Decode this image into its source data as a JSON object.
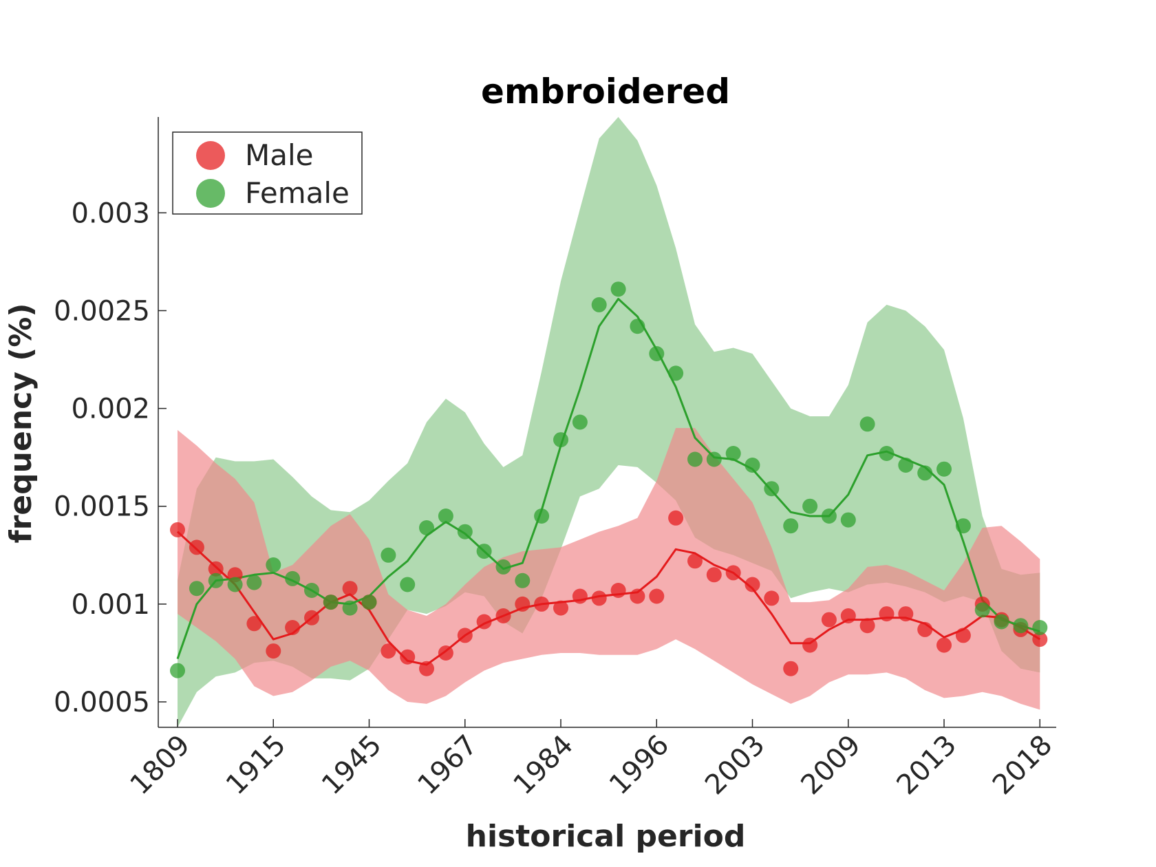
{
  "chart_data": {
    "type": "line",
    "title": "embroidered",
    "xlabel": "historical period",
    "ylabel": "frequency (%)",
    "x_tick_labels": [
      "1809",
      "1915",
      "1945",
      "1967",
      "1984",
      "1996",
      "2003",
      "2009",
      "2013",
      "2018"
    ],
    "y_ticks": [
      0.0005,
      0.001,
      0.0015,
      0.002,
      0.0025,
      0.003
    ],
    "y_tick_labels": [
      "0.0005",
      "0.001",
      "0.0015",
      "0.002",
      "0.0025",
      "0.003"
    ],
    "ylim": [
      0.00037,
      0.00349
    ],
    "grid": false,
    "legend_position": "top-left",
    "series": [
      {
        "name": "Male",
        "color": "#e41a1c",
        "band_color": "#f0888a",
        "points": [
          0.00138,
          0.00129,
          0.00118,
          0.00115,
          0.0009,
          0.00076,
          0.00088,
          0.00093,
          0.00101,
          0.00108,
          0.00101,
          0.00076,
          0.00073,
          0.00067,
          0.00075,
          0.00084,
          0.00091,
          0.00094,
          0.001,
          0.001,
          0.00098,
          0.00104,
          0.00103,
          0.00107,
          0.00104,
          0.00104,
          0.00144,
          0.00122,
          0.00115,
          0.00116,
          0.0011,
          0.00103,
          0.00067,
          0.00079,
          0.00092,
          0.00094,
          0.00089,
          0.00095,
          0.00095,
          0.00087,
          0.00079,
          0.00084,
          0.001,
          0.00092,
          0.00087,
          0.00082
        ],
        "trend": [
          0.00137,
          0.00128,
          0.00119,
          0.0011,
          0.00096,
          0.00082,
          0.00085,
          0.00093,
          0.00101,
          0.00105,
          0.00097,
          0.00081,
          0.00071,
          0.00069,
          0.00076,
          0.00084,
          0.0009,
          0.00094,
          0.00098,
          0.001,
          0.00101,
          0.00102,
          0.00104,
          0.00105,
          0.00106,
          0.00114,
          0.00128,
          0.00126,
          0.0012,
          0.00116,
          0.00108,
          0.00095,
          0.0008,
          0.0008,
          0.00087,
          0.00092,
          0.00092,
          0.00093,
          0.00093,
          0.0009,
          0.00083,
          0.00087,
          0.00094,
          0.00093,
          0.00088,
          0.00082
        ],
        "band_upper": [
          0.00189,
          0.00181,
          0.00172,
          0.00164,
          0.00152,
          0.00116,
          0.0012,
          0.0013,
          0.0014,
          0.00146,
          0.00133,
          0.00105,
          0.00097,
          0.00094,
          0.001,
          0.0011,
          0.00119,
          0.00124,
          0.00127,
          0.00128,
          0.00129,
          0.00133,
          0.00137,
          0.0014,
          0.00144,
          0.00163,
          0.0019,
          0.0019,
          0.00176,
          0.00164,
          0.00152,
          0.00129,
          0.00101,
          0.00101,
          0.00102,
          0.00108,
          0.00119,
          0.0012,
          0.00117,
          0.00112,
          0.00107,
          0.00121,
          0.00139,
          0.0014,
          0.00132,
          0.00123
        ],
        "band_lower": [
          0.00095,
          0.00088,
          0.00081,
          0.00072,
          0.00058,
          0.00053,
          0.00055,
          0.00061,
          0.00068,
          0.00071,
          0.00066,
          0.00056,
          0.0005,
          0.00049,
          0.00053,
          0.0006,
          0.00066,
          0.0007,
          0.00072,
          0.00074,
          0.00075,
          0.00075,
          0.00074,
          0.00074,
          0.00074,
          0.00077,
          0.00082,
          0.00077,
          0.00071,
          0.00065,
          0.00059,
          0.00054,
          0.00049,
          0.00053,
          0.0006,
          0.00064,
          0.00064,
          0.00065,
          0.00062,
          0.00056,
          0.00052,
          0.00053,
          0.00055,
          0.00053,
          0.00049,
          0.00046
        ]
      },
      {
        "name": "Female",
        "color": "#2ca02c",
        "band_color": "#8cc98c",
        "points": [
          0.00066,
          0.00108,
          0.00112,
          0.0011,
          0.00111,
          0.0012,
          0.00113,
          0.00107,
          0.00101,
          0.00098,
          0.00101,
          0.00125,
          0.0011,
          0.00139,
          0.00145,
          0.00137,
          0.00127,
          0.00119,
          0.00112,
          0.00145,
          0.00184,
          0.00193,
          0.00253,
          0.00261,
          0.00242,
          0.00228,
          0.00218,
          0.00174,
          0.00174,
          0.00177,
          0.00171,
          0.00159,
          0.0014,
          0.0015,
          0.00145,
          0.00143,
          0.00192,
          0.00177,
          0.00171,
          0.00167,
          0.00169,
          0.0014,
          0.00097,
          0.00091,
          0.00089,
          0.00088
        ],
        "trend": [
          0.00072,
          0.001,
          0.00112,
          0.00113,
          0.00115,
          0.00116,
          0.00112,
          0.00107,
          0.00101,
          0.001,
          0.00104,
          0.00114,
          0.00122,
          0.00135,
          0.00142,
          0.00136,
          0.00127,
          0.00118,
          0.00121,
          0.00148,
          0.00181,
          0.0021,
          0.00242,
          0.00256,
          0.00247,
          0.0023,
          0.00211,
          0.00185,
          0.00175,
          0.00174,
          0.00169,
          0.00158,
          0.00147,
          0.00145,
          0.00145,
          0.00156,
          0.00176,
          0.00178,
          0.00174,
          0.0017,
          0.00161,
          0.00132,
          0.00102,
          0.00092,
          0.00089,
          0.00086
        ],
        "band_upper": [
          0.00112,
          0.00159,
          0.00175,
          0.00173,
          0.00173,
          0.00174,
          0.00165,
          0.00155,
          0.00148,
          0.00147,
          0.00153,
          0.00163,
          0.00172,
          0.00193,
          0.00205,
          0.00198,
          0.00182,
          0.0017,
          0.00176,
          0.00219,
          0.00265,
          0.00302,
          0.00338,
          0.00349,
          0.00337,
          0.00314,
          0.00282,
          0.00243,
          0.00229,
          0.00231,
          0.00228,
          0.00214,
          0.002,
          0.00196,
          0.00196,
          0.00212,
          0.00244,
          0.00253,
          0.0025,
          0.00242,
          0.0023,
          0.00195,
          0.00145,
          0.00118,
          0.00115,
          0.00116
        ],
        "band_lower": [
          0.00037,
          0.00055,
          0.00063,
          0.00065,
          0.0007,
          0.00071,
          0.00068,
          0.00062,
          0.00062,
          0.00061,
          0.00067,
          0.00082,
          0.00097,
          0.00095,
          0.00099,
          0.00106,
          0.00104,
          0.00091,
          0.00085,
          0.00103,
          0.00128,
          0.00155,
          0.00159,
          0.00171,
          0.0017,
          0.00162,
          0.00153,
          0.00134,
          0.00128,
          0.00125,
          0.00121,
          0.00117,
          0.00103,
          0.00106,
          0.00108,
          0.00106,
          0.0011,
          0.00111,
          0.00109,
          0.00106,
          0.00101,
          0.00104,
          0.00101,
          0.00076,
          0.00067,
          0.00065
        ]
      }
    ]
  }
}
